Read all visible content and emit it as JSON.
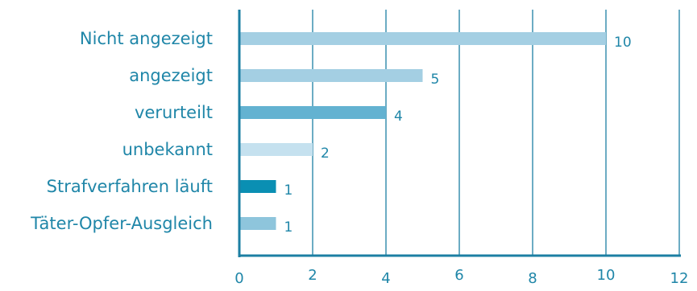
{
  "chart_data": {
    "type": "bar",
    "orientation": "horizontal",
    "categories": [
      "Nicht angezeigt",
      "angezeigt",
      "verurteilt",
      "unbekannt",
      "Strafverfahren läuft",
      "Täter-Opfer-Ausgleich"
    ],
    "values": [
      10,
      5,
      4,
      2,
      1,
      1
    ],
    "value_labels": [
      "10",
      "5",
      "4",
      "2",
      "1",
      "1"
    ],
    "bar_colors": [
      "#a4cfe3",
      "#a4cfe3",
      "#63b2d1",
      "#c5e1ef",
      "#0a8fb3",
      "#8ec5dc"
    ],
    "xticks": [
      "0",
      "2",
      "4",
      "6",
      "8",
      "10",
      "12"
    ],
    "xlim": [
      0,
      12
    ],
    "title": "",
    "xlabel": "",
    "ylabel": "",
    "grid": "vertical",
    "legend": "none"
  }
}
